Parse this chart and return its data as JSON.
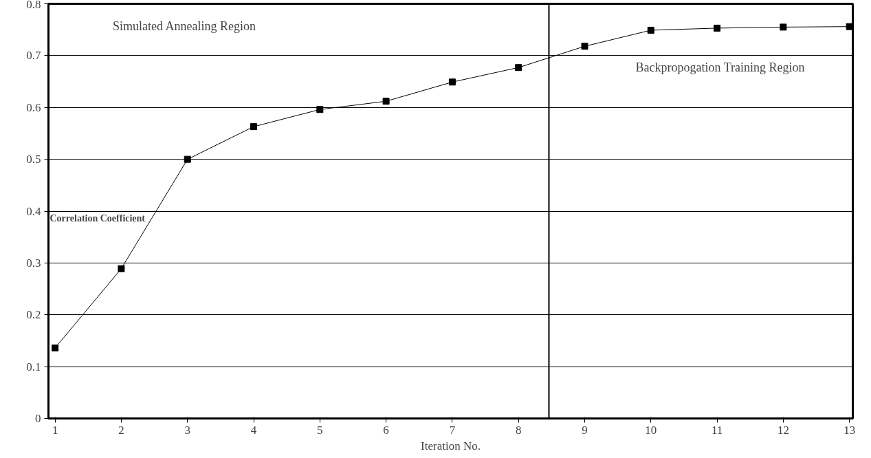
{
  "chart_data": {
    "type": "line",
    "xlabel": "Iteration No.",
    "ylabel": "Correlation Coefficient",
    "x": [
      1,
      2,
      3,
      4,
      5,
      6,
      7,
      8,
      9,
      10,
      11,
      12,
      13
    ],
    "series": [
      {
        "color": "#000000",
        "values": [
          0.136,
          0.289,
          0.5,
          0.563,
          0.596,
          0.612,
          0.649,
          0.677,
          0.718,
          0.749,
          0.753,
          0.755,
          0.756
        ]
      }
    ],
    "xlim": [
      0.9,
      13.05
    ],
    "xticks": [
      1,
      2,
      3,
      4,
      5,
      6,
      7,
      8,
      9,
      10,
      11,
      12,
      13
    ],
    "ylim": [
      0,
      0.8
    ],
    "yticks": [
      0,
      0.1,
      0.2,
      0.3,
      0.4,
      0.5,
      0.6,
      0.7,
      0.8
    ],
    "grid": "y",
    "marker": "square",
    "line_style": "solid",
    "ref_lines": [
      {
        "axis": "x",
        "value": 8.46,
        "color": "#000000",
        "line_style": "solid"
      }
    ],
    "annotations": [
      "Simulated Annealing Region",
      "Backpropogation Training Region"
    ]
  }
}
